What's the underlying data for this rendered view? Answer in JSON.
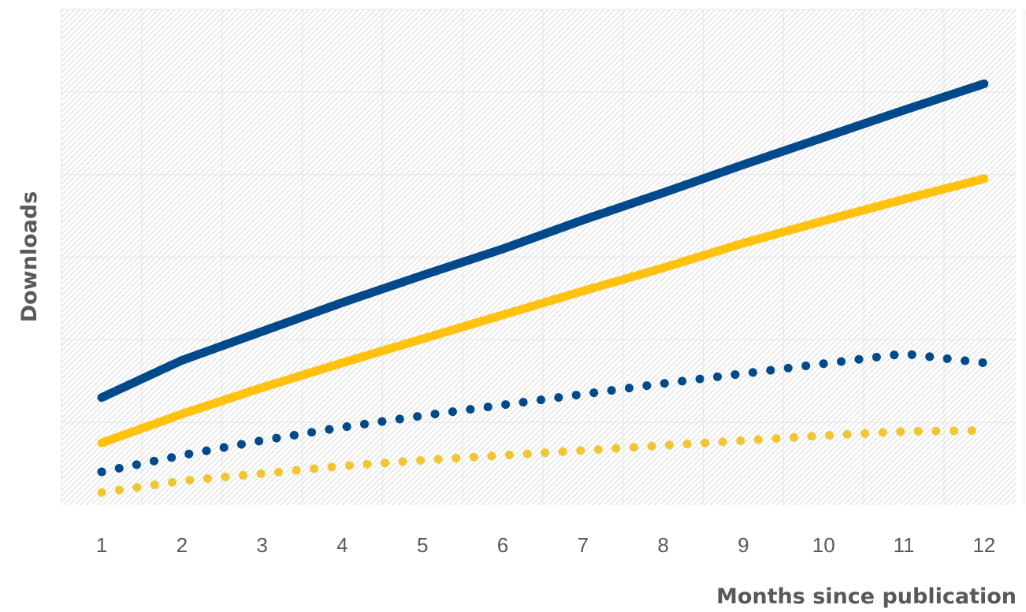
{
  "chart_data": {
    "type": "line",
    "xlabel": "Months since publication",
    "ylabel": "Downloads",
    "categories": [
      "1",
      "2",
      "3",
      "4",
      "5",
      "6",
      "7",
      "8",
      "9",
      "10",
      "11",
      "12"
    ],
    "x": [
      1,
      2,
      3,
      4,
      5,
      6,
      7,
      8,
      9,
      10,
      11,
      12
    ],
    "ylim": [
      0,
      60
    ],
    "y_gridlines": [
      10,
      20,
      30,
      40,
      50,
      60
    ],
    "y_tick_labels_shown": false,
    "grid": true,
    "legend": "none",
    "series": [
      {
        "style": "solid",
        "color": "#004A8C",
        "values": [
          13,
          17.5,
          21,
          24.5,
          27.8,
          31,
          34.5,
          37.8,
          41.2,
          44.5,
          47.8,
          51
        ]
      },
      {
        "style": "solid",
        "color": "#FFC20E",
        "values": [
          7.5,
          11,
          14.2,
          17.2,
          20.1,
          23,
          25.9,
          28.7,
          31.7,
          34.4,
          37,
          39.5
        ]
      },
      {
        "style": "dotted",
        "color": "#004A8C",
        "values": [
          4,
          6,
          7.8,
          9.4,
          10.8,
          12.1,
          13.4,
          14.7,
          15.9,
          17.1,
          18.3,
          17.2
        ]
      },
      {
        "style": "dotted",
        "color": "#F2C630",
        "values": [
          1.5,
          2.9,
          3.8,
          4.7,
          5.4,
          6,
          6.6,
          7.2,
          7.8,
          8.4,
          8.9,
          9
        ]
      }
    ]
  }
}
